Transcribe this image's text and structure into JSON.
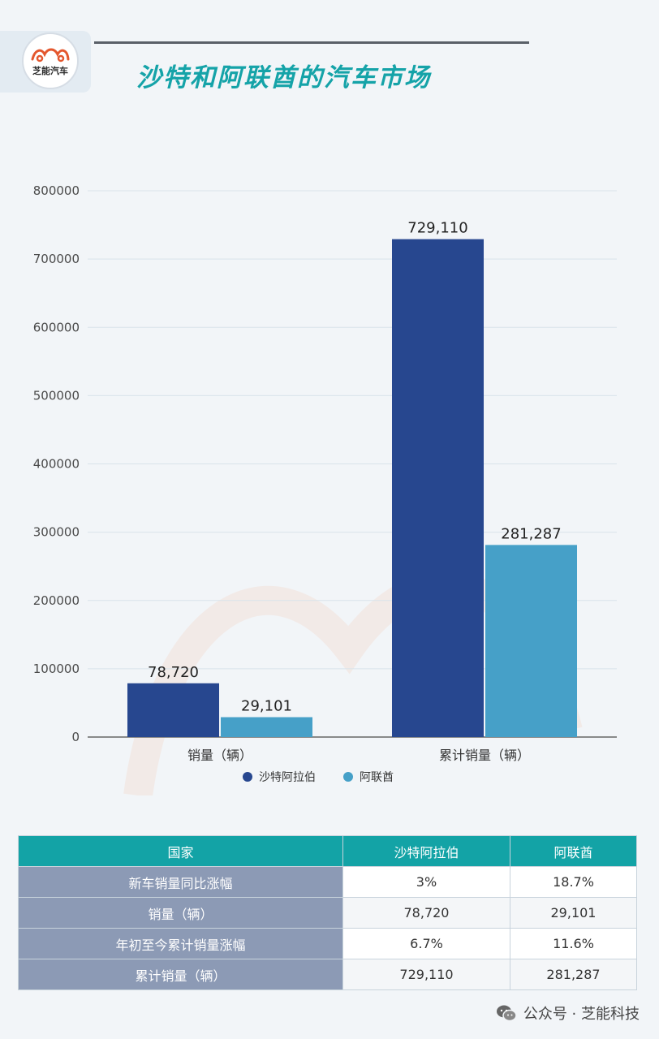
{
  "header": {
    "logo_text": "芝能汽车",
    "title": "沙特和阿联酋的汽车市场"
  },
  "colors": {
    "saudi": "#27478f",
    "uae": "#46a0c8",
    "accent": "#13a3a6"
  },
  "chart_data": {
    "type": "bar",
    "categories": [
      "销量（辆）",
      "累计销量（辆）"
    ],
    "series": [
      {
        "name": "沙特阿拉伯",
        "values": [
          78720,
          729110
        ],
        "labels": [
          "78,720",
          "729,110"
        ]
      },
      {
        "name": "阿联酋",
        "values": [
          29101,
          281287
        ],
        "labels": [
          "29,101",
          "281,287"
        ]
      }
    ],
    "ylim": [
      0,
      800000
    ],
    "yticks": [
      "0",
      "100000",
      "200000",
      "300000",
      "400000",
      "500000",
      "600000",
      "700000",
      "800000"
    ],
    "grid": true,
    "legend": "bottom"
  },
  "table": {
    "headers": [
      "国家",
      "沙特阿拉伯",
      "阿联酋"
    ],
    "rows": [
      {
        "label": "新车销量同比涨幅",
        "saudi": "3%",
        "uae": "18.7%"
      },
      {
        "label": "销量（辆）",
        "saudi": "78,720",
        "uae": "29,101"
      },
      {
        "label": "年初至今累计销量涨幅",
        "saudi": "6.7%",
        "uae": "11.6%"
      },
      {
        "label": "累计销量（辆）",
        "saudi": "729,110",
        "uae": "281,287"
      }
    ]
  },
  "footer": {
    "text": "公众号 · 芝能科技"
  }
}
